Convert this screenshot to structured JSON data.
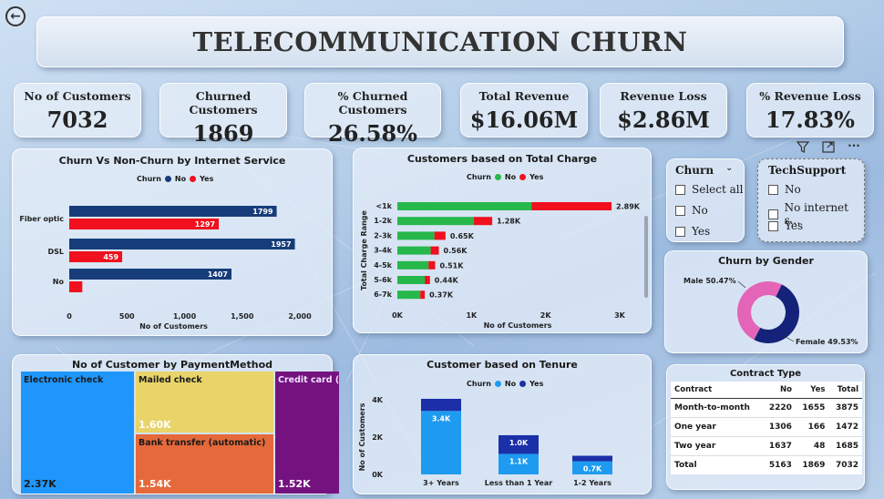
{
  "header": {
    "title": "TELECOMMUNICATION CHURN",
    "back_icon": "arrow-left-icon"
  },
  "kpis": [
    {
      "label": "No of Customers",
      "value": "7032"
    },
    {
      "label": "Churned Customers",
      "value": "1869"
    },
    {
      "label": "% Churned Customers",
      "value": "26.58%"
    },
    {
      "label": "Total Revenue",
      "value": "$16.06M"
    },
    {
      "label": "Revenue Loss",
      "value": "$2.86M"
    },
    {
      "label": "% Revenue Loss",
      "value": "17.83%"
    }
  ],
  "toolbar": {
    "filter_icon": "filter-icon",
    "focus_icon": "focus-mode-icon",
    "more_icon": "more-options-icon",
    "more_glyph": "···"
  },
  "legend": {
    "title": "Churn",
    "no": "No",
    "yes": "Yes"
  },
  "colors": {
    "navy": "#163d7a",
    "red": "#f0101e",
    "green": "#26b84a",
    "lightblue": "#1e9bf0",
    "darkblue": "#1a2fa8",
    "purple": "#74137f",
    "yellow": "#e9d46a",
    "orange": "#e5693b",
    "blue": "#1f96fb",
    "pink": "#e465b8",
    "donut_navy": "#15227a"
  },
  "chart_data": [
    {
      "type": "bar",
      "title": "Churn Vs Non-Churn by Internet Service",
      "categories": [
        "Fiber optic",
        "DSL",
        "No"
      ],
      "series": [
        {
          "name": "No",
          "values": [
            1799,
            1957,
            1407
          ],
          "labels": [
            "1799",
            "1957",
            "1407"
          ]
        },
        {
          "name": "Yes",
          "values": [
            1297,
            459,
            113
          ],
          "labels": [
            "1297",
            "459",
            ""
          ]
        }
      ],
      "xlabel": "No of Customers",
      "ticks": [
        "0",
        "500",
        "1,000",
        "1,500",
        "2,000"
      ],
      "xlim": [
        0,
        2000
      ]
    },
    {
      "type": "bar",
      "title": "Customers based on Total Charge",
      "categories": [
        "<1k",
        "1-2k",
        "2-3k",
        "3-4k",
        "4-5k",
        "5-6k",
        "6-7k"
      ],
      "series": [
        {
          "name": "No",
          "values": [
            1810,
            1030,
            500,
            450,
            420,
            370,
            310
          ]
        },
        {
          "name": "Yes",
          "values": [
            1080,
            250,
            150,
            110,
            90,
            70,
            60
          ]
        }
      ],
      "totals": [
        "2.89K",
        "1.28K",
        "0.65K",
        "0.56K",
        "0.51K",
        "0.44K",
        "0.37K"
      ],
      "xlabel": "No of Customers",
      "ylabel": "Total Charge Range",
      "ticks": [
        "0K",
        "1K",
        "2K",
        "3K"
      ],
      "xlim": [
        0,
        3000
      ]
    },
    {
      "type": "pie",
      "title": "Churn by Gender",
      "slices": [
        {
          "name": "Male",
          "value": 50.47,
          "label": "Male 50.47%"
        },
        {
          "name": "Female",
          "value": 49.53,
          "label": "Female 49.53%"
        }
      ]
    },
    {
      "type": "bar",
      "title": "Customer based on Tenure",
      "categories": [
        "3+ Years",
        "Less than 1 Year",
        "1-2 Years"
      ],
      "series": [
        {
          "name": "No",
          "values": [
            3400,
            1100,
            700
          ],
          "labels": [
            "3.4K",
            "1.1K",
            "0.7K"
          ]
        },
        {
          "name": "Yes",
          "values": [
            650,
            1000,
            300
          ],
          "labels": [
            "",
            "1.0K",
            ""
          ]
        }
      ],
      "ylabel": "No of Customers",
      "ticks": [
        "0K",
        "2K",
        "4K"
      ],
      "ylim": [
        0,
        4000
      ]
    },
    {
      "type": "treemap",
      "title": "No of Customer by PaymentMethod",
      "items": [
        {
          "name": "Electronic check",
          "value_label": "2.37K"
        },
        {
          "name": "Mailed check",
          "value_label": "1.60K"
        },
        {
          "name": "Bank transfer (automatic)",
          "value_label": "1.54K"
        },
        {
          "name": "Credit card (...",
          "value_label": "1.52K"
        }
      ]
    },
    {
      "type": "table",
      "title": "Contract Type",
      "columns": [
        "Contract",
        "No",
        "Yes",
        "Total"
      ],
      "rows": [
        [
          "Month-to-month",
          "2220",
          "1655",
          "3875"
        ],
        [
          "One year",
          "1306",
          "166",
          "1472"
        ],
        [
          "Two year",
          "1637",
          "48",
          "1685"
        ]
      ],
      "total": [
        "Total",
        "5163",
        "1869",
        "7032"
      ]
    }
  ],
  "slicers": {
    "churn": {
      "title": "Churn",
      "items": [
        "Select all",
        "No",
        "Yes"
      ],
      "dropdown_icon": "chevron-down-icon"
    },
    "techsupport": {
      "title": "TechSupport",
      "items": [
        "No",
        "No internet s...",
        "Yes"
      ]
    }
  }
}
